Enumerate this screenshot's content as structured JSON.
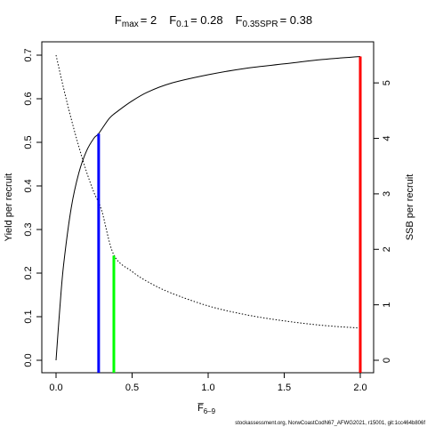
{
  "title_parts": {
    "fmax_main": "F",
    "fmax_sub": "max",
    "fmax_value": "= 2",
    "f01_main": "F",
    "f01_sub": "0.1",
    "f01_value": "= 0.28",
    "fspr_main": "F",
    "fspr_sub": "0.35SPR",
    "fspr_value": "= 0.38"
  },
  "xlabel_main": "F̅",
  "xlabel_sub": "6–9",
  "ylabel_left": "Yield per recruit",
  "ylabel_right": "SSB per recruit",
  "footer": "stockassessment.org, NorwCoastCodN67_AFWG2021, r15001, git:1cc464b806f",
  "colors": {
    "fmax_line": "#ff0000",
    "f01_line": "#0000ff",
    "fspr_line": "#00ff00",
    "curves": "#000000"
  },
  "chart_data": {
    "type": "line",
    "xlim": [
      0,
      2
    ],
    "ylim_left": [
      0,
      0.7
    ],
    "ylim_right": [
      0,
      5.5
    ],
    "x_ticks": [
      0.0,
      0.5,
      1.0,
      1.5,
      2.0
    ],
    "x_tick_labels": [
      "0.0",
      "0.5",
      "1.0",
      "1.5",
      "2.0"
    ],
    "y_left_ticks": [
      0.0,
      0.1,
      0.2,
      0.3,
      0.4,
      0.5,
      0.6,
      0.7
    ],
    "y_left_tick_labels": [
      "0.0",
      "0.1",
      "0.2",
      "0.3",
      "0.4",
      "0.5",
      "0.6",
      "0.7"
    ],
    "y_right_ticks": [
      0,
      1,
      2,
      3,
      4,
      5
    ],
    "y_right_tick_labels": [
      "0",
      "1",
      "2",
      "3",
      "4",
      "5"
    ],
    "series": [
      {
        "axis": "left",
        "style": "solid",
        "x": [
          0.0,
          0.025,
          0.05,
          0.1,
          0.15,
          0.2,
          0.25,
          0.28,
          0.35,
          0.4,
          0.5,
          0.6,
          0.75,
          1.0,
          1.25,
          1.5,
          1.75,
          2.0
        ],
        "y": [
          0.0,
          0.12,
          0.22,
          0.35,
          0.43,
          0.48,
          0.51,
          0.52,
          0.555,
          0.57,
          0.595,
          0.615,
          0.635,
          0.655,
          0.67,
          0.68,
          0.69,
          0.697
        ]
      },
      {
        "axis": "right",
        "style": "dotted",
        "x": [
          0.0,
          0.05,
          0.1,
          0.15,
          0.2,
          0.25,
          0.3,
          0.38,
          0.5,
          0.6,
          0.75,
          1.0,
          1.25,
          1.5,
          1.75,
          2.0
        ],
        "y": [
          5.5,
          4.9,
          4.35,
          3.85,
          3.4,
          3.02,
          2.7,
          1.9,
          1.6,
          1.42,
          1.22,
          0.98,
          0.82,
          0.71,
          0.63,
          0.58
        ]
      }
    ],
    "reference_lines": [
      {
        "name": "Fmax",
        "x": 2.0,
        "y_left": 0.697,
        "color": "#ff0000"
      },
      {
        "name": "F0.1",
        "x": 0.28,
        "y_left": 0.52,
        "color": "#0000ff"
      },
      {
        "name": "F0.35SPR",
        "x": 0.38,
        "y_left": 0.24,
        "color": "#00ff00"
      }
    ],
    "grid": false
  }
}
